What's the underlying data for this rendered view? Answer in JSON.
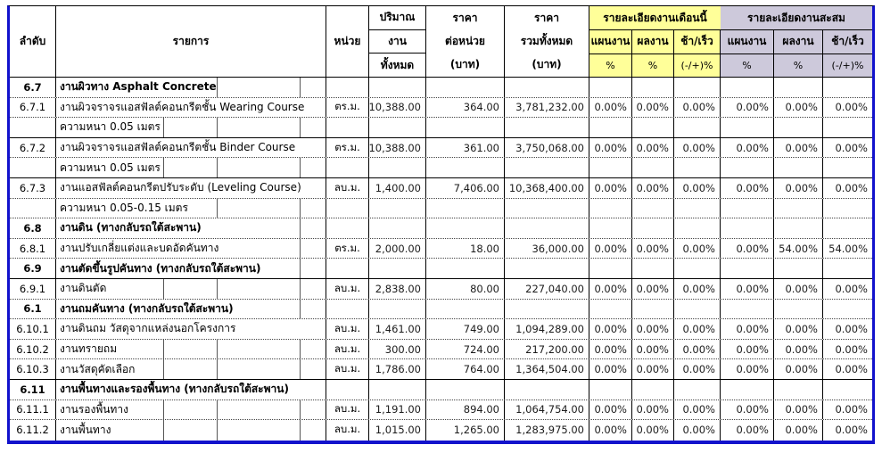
{
  "table": {
    "colors": {
      "month_group_bg": "#ffff99",
      "cumulative_group_bg": "#cdc9db",
      "outer_border_blue": "#1212cc"
    },
    "header": {
      "no": "ลำดับ",
      "item": "รายการ",
      "unit": "หน่วย",
      "qty_lines": [
        "ปริมาณ",
        "งาน",
        "ทั้งหมด"
      ],
      "unit_price_lines": [
        "ราคา",
        "ต่อหน่วย",
        "(บาท)"
      ],
      "total_price_lines": [
        "ราคา",
        "รวมทั้งหมด",
        "(บาท)"
      ],
      "month_group": {
        "title": "รายละเอียดงานเดือนนี้",
        "cols": [
          {
            "label": "แผนงาน",
            "unit": "%"
          },
          {
            "label": "ผลงาน",
            "unit": "%"
          },
          {
            "label": "ช้า/เร็ว",
            "unit": "(-/+)%"
          }
        ]
      },
      "cumulative_group": {
        "title": "รายละเอียดงานสะสม",
        "cols": [
          {
            "label": "แผนงาน",
            "unit": "%"
          },
          {
            "label": "ผลงาน",
            "unit": "%"
          },
          {
            "label": "ช้า/เร็ว",
            "unit": "(-/+)%"
          }
        ]
      }
    },
    "rows": [
      {
        "no": "6.7",
        "item": "งานผิวทาง Asphalt Concrete",
        "bold": true,
        "unit": "",
        "qty": "",
        "unit_price": "",
        "total": "",
        "pct": [
          "",
          "",
          "",
          "",
          "",
          ""
        ],
        "divider": "dotted",
        "inner_lines": [
          180,
          273
        ]
      },
      {
        "no": "6.7.1",
        "item": "งานผิวจราจรแอสฟัลต์คอนกรีตชั้น Wearing Course",
        "bold": false,
        "unit": "ตร.ม.",
        "qty": "10,388.00",
        "unit_price": "364.00",
        "total": "3,781,232.00",
        "pct": [
          "0.00%",
          "0.00%",
          "0.00%",
          "0.00%",
          "0.00%",
          "0.00%"
        ],
        "divider": "dotted",
        "inner_lines": []
      },
      {
        "no": "",
        "item": "ความหนา 0.05 เมตร",
        "bold": false,
        "unit": "",
        "qty": "",
        "unit_price": "",
        "total": "",
        "pct": [
          "",
          "",
          "",
          "",
          "",
          ""
        ],
        "divider": "solid",
        "inner_lines": [
          120,
          180,
          273
        ]
      },
      {
        "no": "6.7.2",
        "item": "งานผิวจราจรแอสฟัลต์คอนกรีตชั้น  Binder Course",
        "bold": false,
        "unit": "ตร.ม.",
        "qty": "10,388.00",
        "unit_price": "361.00",
        "total": "3,750,068.00",
        "pct": [
          "0.00%",
          "0.00%",
          "0.00%",
          "0.00%",
          "0.00%",
          "0.00%"
        ],
        "divider": "dotted",
        "inner_lines": []
      },
      {
        "no": "",
        "item": "ความหนา 0.05 เมตร",
        "bold": false,
        "unit": "",
        "qty": "",
        "unit_price": "",
        "total": "",
        "pct": [
          "",
          "",
          "",
          "",
          "",
          ""
        ],
        "divider": "solid",
        "inner_lines": [
          120,
          180,
          273
        ]
      },
      {
        "no": "6.7.3",
        "item": "งานแอสฟัลต์คอนกรีตปรับระดับ (Leveling Course)",
        "bold": false,
        "unit": "ลบ.ม.",
        "qty": "1,400.00",
        "unit_price": "7,406.00",
        "total": "10,368,400.00",
        "pct": [
          "0.00%",
          "0.00%",
          "0.00%",
          "0.00%",
          "0.00%",
          "0.00%"
        ],
        "divider": "dotted",
        "inner_lines": []
      },
      {
        "no": "",
        "item": "ความหนา 0.05-0.15 เมตร",
        "bold": false,
        "unit": "",
        "qty": "",
        "unit_price": "",
        "total": "",
        "pct": [
          "",
          "",
          "",
          "",
          "",
          ""
        ],
        "divider": "dotted",
        "inner_lines": [
          180,
          273
        ]
      },
      {
        "no": "6.8",
        "item": "งานดิน (ทางกลับรถใต้สะพาน)",
        "bold": true,
        "unit": "",
        "qty": "",
        "unit_price": "",
        "total": "",
        "pct": [
          "",
          "",
          "",
          "",
          "",
          ""
        ],
        "divider": "dotted",
        "inner_lines": [
          273
        ]
      },
      {
        "no": "6.8.1",
        "item": "งานปรับเกลี่ยแต่งและบดอัดคันทาง",
        "bold": false,
        "unit": "ตร.ม.",
        "qty": "2,000.00",
        "unit_price": "18.00",
        "total": "36,000.00",
        "pct": [
          "0.00%",
          "0.00%",
          "0.00%",
          "0.00%",
          "54.00%",
          "54.00%"
        ],
        "divider": "dotted",
        "inner_lines": [
          273
        ]
      },
      {
        "no": "6.9",
        "item": "งานตัดขึ้นรูปคันทาง (ทางกลับรถใต้สะพาน)",
        "bold": true,
        "unit": "",
        "qty": "",
        "unit_price": "",
        "total": "",
        "pct": [
          "",
          "",
          "",
          "",
          "",
          ""
        ],
        "divider": "solid",
        "inner_lines": [
          273
        ]
      },
      {
        "no": "6.9.1",
        "item": "งานดินตัด",
        "bold": false,
        "unit": "ลบ.ม.",
        "qty": "2,838.00",
        "unit_price": "80.00",
        "total": "227,040.00",
        "pct": [
          "0.00%",
          "0.00%",
          "0.00%",
          "0.00%",
          "0.00%",
          "0.00%"
        ],
        "divider": "dotted",
        "inner_lines": [
          120,
          180,
          273
        ]
      },
      {
        "no": "6.1",
        "item": "งานถมคันทาง (ทางกลับรถใต้สะพาน)",
        "bold": true,
        "unit": "",
        "qty": "",
        "unit_price": "",
        "total": "",
        "pct": [
          "",
          "",
          "",
          "",
          "",
          ""
        ],
        "divider": "dotted",
        "inner_lines": [
          273
        ]
      },
      {
        "no": "6.10.1",
        "item": "งานดินถม วัสดุจากแหล่งนอกโครงการ",
        "bold": false,
        "unit": "ลบ.ม.",
        "qty": "1,461.00",
        "unit_price": "749.00",
        "total": "1,094,289.00",
        "pct": [
          "0.00%",
          "0.00%",
          "0.00%",
          "0.00%",
          "0.00%",
          "0.00%"
        ],
        "divider": "dotted",
        "inner_lines": []
      },
      {
        "no": "6.10.2",
        "item": "งานทรายถม",
        "bold": false,
        "unit": "ลบ.ม.",
        "qty": "300.00",
        "unit_price": "724.00",
        "total": "217,200.00",
        "pct": [
          "0.00%",
          "0.00%",
          "0.00%",
          "0.00%",
          "0.00%",
          "0.00%"
        ],
        "divider": "dotted",
        "inner_lines": [
          120,
          180,
          273
        ]
      },
      {
        "no": "6.10.3",
        "item": "งานวัสดุคัดเลือก",
        "bold": false,
        "unit": "ลบ.ม.",
        "qty": "1,786.00",
        "unit_price": "764.00",
        "total": "1,364,504.00",
        "pct": [
          "0.00%",
          "0.00%",
          "0.00%",
          "0.00%",
          "0.00%",
          "0.00%"
        ],
        "divider": "solid",
        "inner_lines": [
          120,
          180,
          273
        ]
      },
      {
        "no": "6.11",
        "item": "งานพื้นทางและรองพื้นทาง (ทางกลับรถใต้สะพาน)",
        "bold": true,
        "unit": "",
        "qty": "",
        "unit_price": "",
        "total": "",
        "pct": [
          "",
          "",
          "",
          "",
          "",
          ""
        ],
        "divider": "dotted",
        "inner_lines": []
      },
      {
        "no": "6.11.1",
        "item": "งานรองพื้นทาง",
        "bold": false,
        "unit": "ลบ.ม.",
        "qty": "1,191.00",
        "unit_price": "894.00",
        "total": "1,064,754.00",
        "pct": [
          "0.00%",
          "0.00%",
          "0.00%",
          "0.00%",
          "0.00%",
          "0.00%"
        ],
        "divider": "dotted",
        "inner_lines": [
          120,
          180,
          273
        ]
      },
      {
        "no": "6.11.2",
        "item": "งานพื้นทาง",
        "bold": false,
        "unit": "ลบ.ม.",
        "qty": "1,015.00",
        "unit_price": "1,265.00",
        "total": "1,283,975.00",
        "pct": [
          "0.00%",
          "0.00%",
          "0.00%",
          "0.00%",
          "0.00%",
          "0.00%"
        ],
        "divider": "none",
        "inner_lines": [
          120,
          180,
          273
        ]
      }
    ]
  }
}
